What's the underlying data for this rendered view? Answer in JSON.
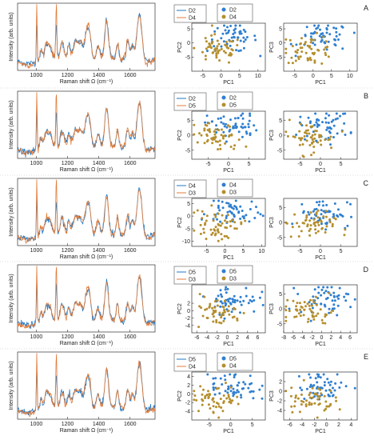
{
  "figure": {
    "raman_xlabel": "Raman shift Ω (cm⁻¹)",
    "raman_ylabel": "Intensity (arb. units)",
    "pc1_label": "PC1",
    "pc2_label": "PC2",
    "pc3_label": "PC3",
    "colors": {
      "blue": "#1f77c4",
      "orange": "#e07b39",
      "gold": "#b58f2e",
      "blue_marker": "#2f7fd0"
    }
  },
  "chart_data": [
    {
      "panel": "A",
      "type": "line",
      "xlabel": "Raman shift Ω (cm⁻¹)",
      "ylabel": "Intensity (arb. units)",
      "x_ticks": [
        1000,
        1200,
        1400,
        1600
      ],
      "xlim": [
        880,
        1760
      ],
      "series": [
        {
          "name": "D2",
          "color": "#1f77c4"
        },
        {
          "name": "D4",
          "color": "#e07b39"
        }
      ],
      "scatters": [
        {
          "type": "scatter",
          "xlabel": "PC1",
          "ylabel": "PC2",
          "xlim": [
            -8,
            12
          ],
          "ylim": [
            -10,
            7
          ],
          "x_ticks": [
            -5,
            0,
            5,
            10
          ],
          "y_ticks": [
            -5,
            0,
            5
          ],
          "legend": [
            {
              "name": "D2",
              "color": "#2f7fd0"
            },
            {
              "name": "D4",
              "color": "#b58f2e"
            }
          ]
        },
        {
          "type": "scatter",
          "xlabel": "PC1",
          "ylabel": "PC3",
          "xlim": [
            -8,
            12
          ],
          "ylim": [
            -10,
            7
          ],
          "x_ticks": [
            -5,
            0,
            5,
            10
          ],
          "y_ticks": [
            -5,
            0,
            5
          ]
        }
      ]
    },
    {
      "panel": "B",
      "type": "line",
      "xlabel": "Raman shift Ω (cm⁻¹)",
      "ylabel": "Intensity (arb. units)",
      "x_ticks": [
        1000,
        1200,
        1400,
        1600
      ],
      "xlim": [
        880,
        1760
      ],
      "series": [
        {
          "name": "D2",
          "color": "#1f77c4"
        },
        {
          "name": "D5",
          "color": "#e07b39"
        }
      ],
      "scatters": [
        {
          "type": "scatter",
          "xlabel": "PC1",
          "ylabel": "PC2",
          "xlim": [
            -9,
            9
          ],
          "ylim": [
            -8,
            8
          ],
          "x_ticks": [
            -5,
            0,
            5
          ],
          "y_ticks": [
            -5,
            0,
            5
          ],
          "legend": [
            {
              "name": "D2",
              "color": "#2f7fd0"
            },
            {
              "name": "D5",
              "color": "#b58f2e"
            }
          ]
        },
        {
          "type": "scatter",
          "xlabel": "PC1",
          "ylabel": "PC3",
          "xlim": [
            -9,
            9
          ],
          "ylim": [
            -8,
            8
          ],
          "x_ticks": [
            -5,
            0,
            5
          ],
          "y_ticks": [
            -5,
            0,
            5
          ]
        }
      ]
    },
    {
      "panel": "C",
      "type": "line",
      "xlabel": "Raman shift Ω (cm⁻¹)",
      "ylabel": "Intensity (arb. units)",
      "x_ticks": [
        1000,
        1200,
        1400,
        1600
      ],
      "xlim": [
        880,
        1760
      ],
      "series": [
        {
          "name": "D4",
          "color": "#1f77c4"
        },
        {
          "name": "D3",
          "color": "#e07b39"
        }
      ],
      "scatters": [
        {
          "type": "scatter",
          "xlabel": "PC1",
          "ylabel": "PC2",
          "xlim": [
            -9,
            11
          ],
          "ylim": [
            -12,
            7
          ],
          "x_ticks": [
            -5,
            0,
            5,
            10
          ],
          "y_ticks": [
            -10,
            -5,
            0,
            5
          ],
          "legend": [
            {
              "name": "D4",
              "color": "#2f7fd0"
            },
            {
              "name": "D3",
              "color": "#b58f2e"
            }
          ]
        },
        {
          "type": "scatter",
          "xlabel": "PC1",
          "ylabel": "PC3",
          "xlim": [
            -9,
            9
          ],
          "ylim": [
            -8,
            8
          ],
          "x_ticks": [
            -5,
            0,
            5
          ],
          "y_ticks": [
            -5,
            0,
            5
          ]
        }
      ]
    },
    {
      "panel": "D",
      "type": "line",
      "xlabel": "Raman shift Ω (cm⁻¹)",
      "ylabel": "Intensity (arb. units)",
      "x_ticks": [
        1000,
        1200,
        1400,
        1600
      ],
      "xlim": [
        880,
        1760
      ],
      "series": [
        {
          "name": "D5",
          "color": "#1f77c4"
        },
        {
          "name": "D3",
          "color": "#e07b39"
        }
      ],
      "scatters": [
        {
          "type": "scatter",
          "xlabel": "PC1",
          "ylabel": "PC2",
          "xlim": [
            -7,
            7.5
          ],
          "ylim": [
            -6,
            7
          ],
          "x_ticks": [
            -6,
            -4,
            -2,
            0,
            2,
            4,
            6
          ],
          "y_ticks": [
            -4,
            -2,
            0,
            2
          ],
          "legend": [
            {
              "name": "D5",
              "color": "#2f7fd0"
            },
            {
              "name": "D3",
              "color": "#b58f2e"
            }
          ]
        },
        {
          "type": "scatter",
          "xlabel": "PC1",
          "ylabel": "PC3",
          "xlim": [
            -8,
            7.5
          ],
          "ylim": [
            -8,
            8
          ],
          "x_ticks": [
            -8,
            -6,
            -4,
            -2,
            0,
            2,
            4,
            6
          ],
          "y_ticks": [
            -5,
            0,
            5
          ]
        }
      ]
    },
    {
      "panel": "E",
      "type": "line",
      "xlabel": "Raman shift Ω (cm⁻¹)",
      "ylabel": "Intensity (arb. units)",
      "x_ticks": [
        1000,
        1200,
        1400,
        1600
      ],
      "xlim": [
        880,
        1760
      ],
      "series": [
        {
          "name": "D5",
          "color": "#1f77c4"
        },
        {
          "name": "D4",
          "color": "#e07b39"
        }
      ],
      "scatters": [
        {
          "type": "scatter",
          "xlabel": "PC1",
          "ylabel": "PC2",
          "xlim": [
            -9,
            8
          ],
          "ylim": [
            -6,
            5
          ],
          "x_ticks": [
            -5,
            0,
            5
          ],
          "y_ticks": [
            -4,
            -2,
            0,
            2,
            4
          ],
          "legend": [
            {
              "name": "D5",
              "color": "#2f7fd0"
            },
            {
              "name": "D4",
              "color": "#b58f2e"
            }
          ]
        },
        {
          "type": "scatter",
          "xlabel": "PC1",
          "ylabel": "PC3",
          "xlim": [
            -7,
            5
          ],
          "ylim": [
            -6,
            4
          ],
          "x_ticks": [
            -6,
            -4,
            -2,
            0,
            2,
            4
          ],
          "y_ticks": [
            -4,
            -2,
            0,
            2
          ]
        }
      ]
    }
  ]
}
